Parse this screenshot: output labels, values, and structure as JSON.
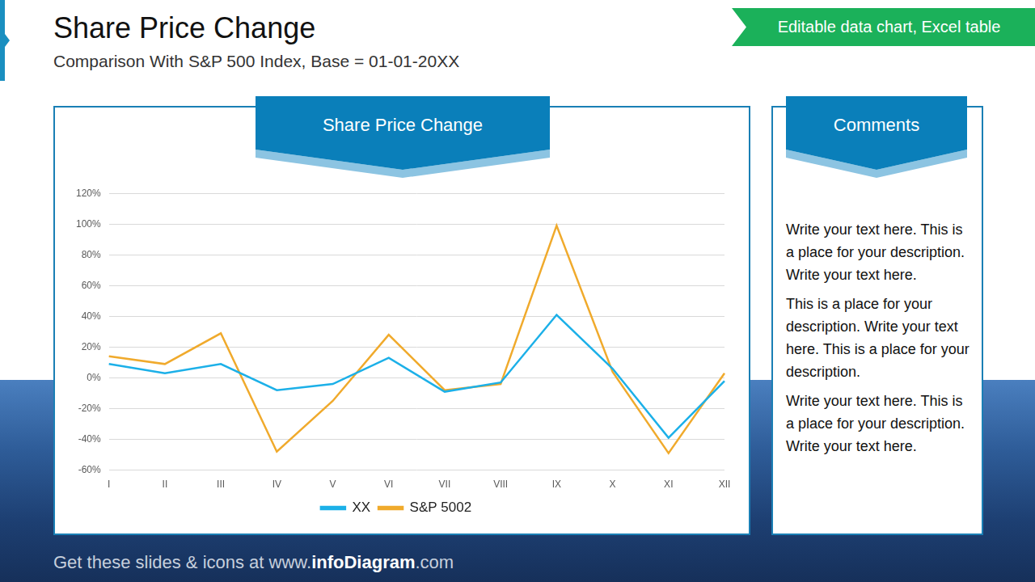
{
  "header": {
    "title": "Share Price Change",
    "subtitle": "Comparison With S&P 500 Index, Base = 01-01-20XX",
    "badge": "Editable data chart, Excel table"
  },
  "chart_data": {
    "type": "line",
    "title": "Share Price Change",
    "categories": [
      "I",
      "II",
      "III",
      "IV",
      "V",
      "VI",
      "VII",
      "VIII",
      "IX",
      "X",
      "XI",
      "XII"
    ],
    "series": [
      {
        "name": "XX",
        "color": "#1cb0e8",
        "marker": "none",
        "values": [
          9,
          3,
          9,
          -8,
          -4,
          13,
          -9,
          -3,
          41,
          6,
          -39,
          -2
        ]
      },
      {
        "name": "S&P 5002",
        "color": "#f0aa2c",
        "marker": "none",
        "values": [
          14,
          9,
          29,
          -48,
          -15,
          28,
          -8,
          -4,
          99,
          4,
          -49,
          3
        ]
      }
    ],
    "ylim": [
      -60,
      120
    ],
    "yticks": [
      {
        "value": -60,
        "label": "-60%"
      },
      {
        "value": -40,
        "label": "-40%"
      },
      {
        "value": -20,
        "label": "-20%"
      },
      {
        "value": 0,
        "label": "0%"
      },
      {
        "value": 20,
        "label": "20%"
      },
      {
        "value": 40,
        "label": "40%"
      },
      {
        "value": 60,
        "label": "60%"
      },
      {
        "value": 80,
        "label": "80%"
      },
      {
        "value": 100,
        "label": "100%"
      },
      {
        "value": 120,
        "label": "120%"
      }
    ],
    "grid": true,
    "legend": "bottom"
  },
  "comments": {
    "title": "Comments",
    "paragraphs": [
      "Write your text here. This is a place for your description. Write your text here.",
      "This is a place for your description. Write your text here. This is a place for your description.",
      "Write your text here. This is a place for your description. Write your text here."
    ]
  },
  "footer": [
    "Get these slides & icons at www.",
    "infoDiagram",
    ".com"
  ]
}
